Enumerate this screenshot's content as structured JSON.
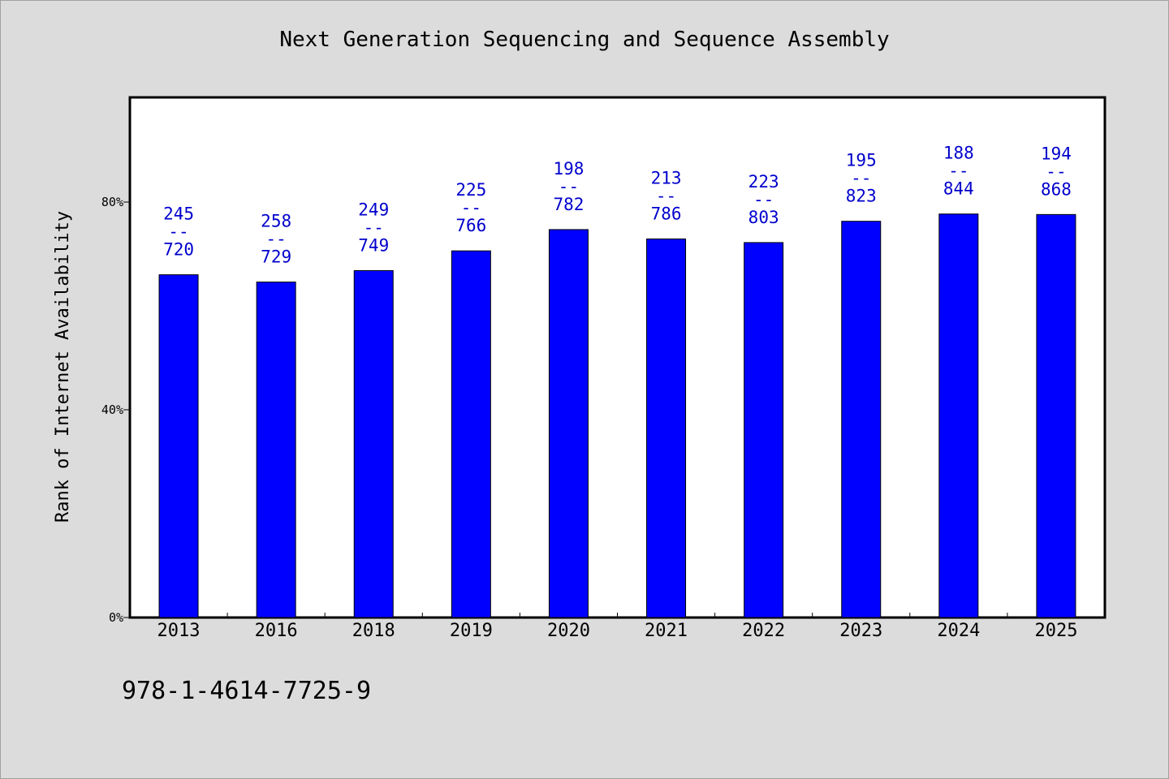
{
  "chart_data": {
    "type": "bar",
    "title": "Next Generation Sequencing and Sequence Assembly",
    "ylabel": "Rank of Internet Availability",
    "xlabel": "",
    "categories": [
      "2013",
      "2016",
      "2018",
      "2019",
      "2020",
      "2021",
      "2022",
      "2023",
      "2024",
      "2025"
    ],
    "series": [
      {
        "numerator": [
          245,
          258,
          249,
          225,
          198,
          213,
          223,
          195,
          188,
          194
        ],
        "denominator": [
          720,
          729,
          749,
          766,
          782,
          786,
          803,
          823,
          844,
          868
        ],
        "values": [
          0.66,
          0.646,
          0.668,
          0.706,
          0.747,
          0.729,
          0.722,
          0.763,
          0.777,
          0.776
        ]
      }
    ],
    "data_labels": [
      {
        "top": "245",
        "sep": "--",
        "bottom": "720"
      },
      {
        "top": "258",
        "sep": "--",
        "bottom": "729"
      },
      {
        "top": "249",
        "sep": "--",
        "bottom": "749"
      },
      {
        "top": "225",
        "sep": "--",
        "bottom": "766"
      },
      {
        "top": "198",
        "sep": "--",
        "bottom": "782"
      },
      {
        "top": "213",
        "sep": "--",
        "bottom": "786"
      },
      {
        "top": "223",
        "sep": "--",
        "bottom": "803"
      },
      {
        "top": "195",
        "sep": "--",
        "bottom": "823"
      },
      {
        "top": "188",
        "sep": "--",
        "bottom": "844"
      },
      {
        "top": "194",
        "sep": "--",
        "bottom": "868"
      }
    ],
    "yticks": [
      {
        "value": 0,
        "label": "0%"
      },
      {
        "value": 0.4,
        "label": "40%"
      },
      {
        "value": 0.8,
        "label": "80%"
      }
    ],
    "ylim": [
      0,
      1.0
    ],
    "grid": false,
    "colors": {
      "bar": "#0000ff",
      "bar_edge": "#000000",
      "label": "#0000cc",
      "plot_bg": "#ffffff",
      "page_bg": "#dcdcdc"
    }
  },
  "footnote": "978-1-4614-7725-9"
}
